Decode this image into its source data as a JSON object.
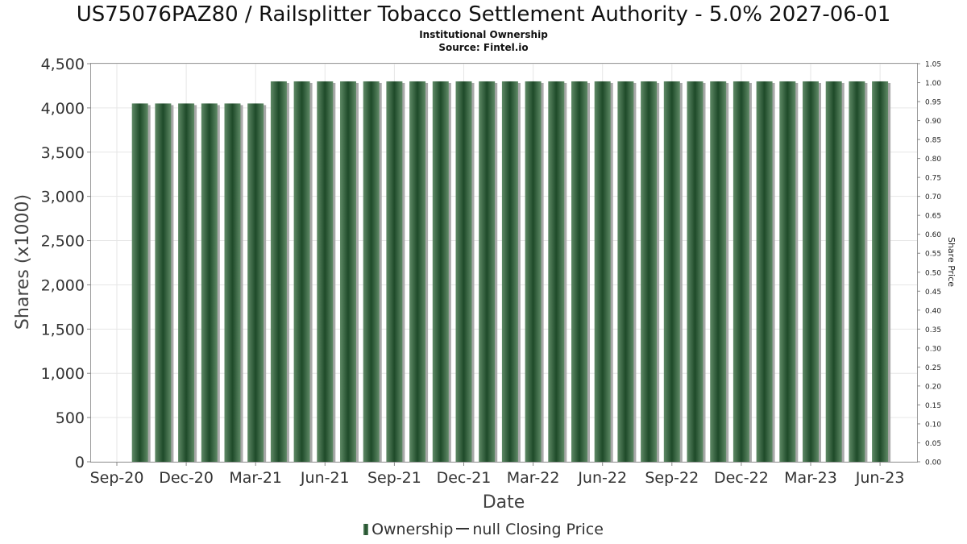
{
  "header": {
    "title": "US75076PAZ80 / Railsplitter Tobacco Settlement Authority - 5.0% 2027-06-01",
    "subtitle1": "Institutional Ownership",
    "subtitle2": "Source: Fintel.io"
  },
  "legend": {
    "ownership": "Ownership",
    "closing_price": "null Closing Price"
  },
  "colors": {
    "bar_dark": "#1e4a29",
    "bar_light": "#5f8a66",
    "bar_shadow": "#a9a9a9",
    "grid": "#e6e6e6"
  },
  "chart_data": {
    "type": "bar",
    "xlabel": "Date",
    "ylabel": "Shares (x1000)",
    "y2label": "Share Price",
    "ylim": [
      0,
      4500
    ],
    "y2lim": [
      0,
      1.05
    ],
    "grid": true,
    "legend_position": "bottom",
    "y_ticks": [
      "0",
      "500",
      "1,000",
      "1,500",
      "2,000",
      "2,500",
      "3,000",
      "3,500",
      "4,000",
      "4,500"
    ],
    "y2_ticks": [
      "0.00",
      "0.05",
      "0.10",
      "0.15",
      "0.20",
      "0.25",
      "0.30",
      "0.35",
      "0.40",
      "0.45",
      "0.50",
      "0.55",
      "0.60",
      "0.65",
      "0.70",
      "0.75",
      "0.80",
      "0.85",
      "0.90",
      "0.95",
      "1.00",
      "1.05"
    ],
    "x_ticks": [
      "Sep-20",
      "Dec-20",
      "Mar-21",
      "Jun-21",
      "Sep-21",
      "Dec-21",
      "Mar-22",
      "Jun-22",
      "Sep-22",
      "Dec-22",
      "Mar-23",
      "Jun-23"
    ],
    "series": [
      {
        "name": "Ownership",
        "x": [
          "2020-10",
          "2020-11",
          "2020-12",
          "2021-01",
          "2021-02",
          "2021-03",
          "2021-04",
          "2021-05",
          "2021-06",
          "2021-07",
          "2021-08",
          "2021-09",
          "2021-10",
          "2021-11",
          "2021-12",
          "2022-01",
          "2022-02",
          "2022-03",
          "2022-04",
          "2022-05",
          "2022-06",
          "2022-07",
          "2022-08",
          "2022-09",
          "2022-10",
          "2022-11",
          "2022-12",
          "2023-01",
          "2023-02",
          "2023-03",
          "2023-04",
          "2023-05",
          "2023-06"
        ],
        "values": [
          4050,
          4050,
          4050,
          4050,
          4050,
          4050,
          4300,
          4300,
          4300,
          4300,
          4300,
          4300,
          4300,
          4300,
          4300,
          4300,
          4300,
          4300,
          4300,
          4300,
          4300,
          4300,
          4300,
          4300,
          4300,
          4300,
          4300,
          4300,
          4300,
          4300,
          4300,
          4300,
          4300
        ]
      }
    ]
  }
}
